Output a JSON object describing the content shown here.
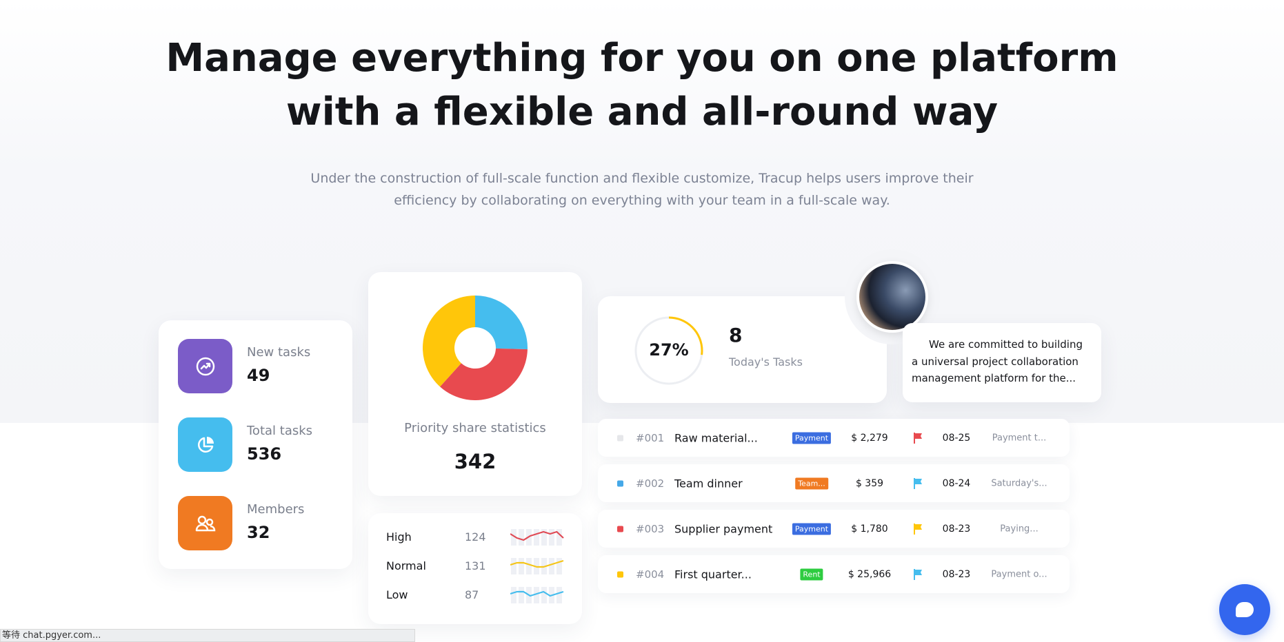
{
  "hero": {
    "title_line1": "Manage everything for you on one platform",
    "title_line2": "with a flexible and all-round way",
    "subtitle_line1": "Under the construction of full-scale function and flexible customize, Tracup helps users improve their",
    "subtitle_line2": "efficiency by collaborating on everything with your team in a full-scale way."
  },
  "stats": [
    {
      "label": "New tasks",
      "value": "49",
      "icon": "trend-icon",
      "color": "#7b5cc8"
    },
    {
      "label": "Total tasks",
      "value": "536",
      "icon": "pie-icon",
      "color": "#45bdee"
    },
    {
      "label": "Members",
      "value": "32",
      "icon": "members-icon",
      "color": "#f07a22"
    }
  ],
  "priority": {
    "title": "Priority share statistics",
    "total": "342",
    "slices": [
      {
        "value": 124,
        "color": "#e84a4f"
      },
      {
        "value": 131,
        "color": "#ffc60a"
      },
      {
        "value": 87,
        "color": "#45bdee"
      }
    ],
    "rows": [
      {
        "label": "High",
        "value": "124",
        "color": "#e04a55",
        "trend": [
          5,
          3,
          2,
          4,
          5,
          6,
          5,
          6,
          3
        ]
      },
      {
        "label": "Normal",
        "value": "131",
        "color": "#f5c518",
        "trend": [
          4,
          5,
          5,
          4,
          3,
          3,
          4,
          5,
          6
        ]
      },
      {
        "label": "Low",
        "value": "87",
        "color": "#45bdee",
        "trend": [
          4,
          5,
          5,
          3,
          4,
          5,
          3,
          4,
          5
        ]
      }
    ]
  },
  "today": {
    "percent_label": "27%",
    "percent": 27,
    "count": "8",
    "label": "Today's Tasks"
  },
  "quote": {
    "line1": "We are committed to building",
    "line2": "a universal project collaboration",
    "line3": "management platform for the..."
  },
  "tasks": [
    {
      "id": "#001",
      "name": "Raw material...",
      "tag": "Payment",
      "tag_color": "#3b6de0",
      "amount": "$ 2,279",
      "flag_color": "#e84a4f",
      "date": "08-25",
      "desc": "Payment t...",
      "dot": "#e6e7ea"
    },
    {
      "id": "#002",
      "name": "Team dinner",
      "tag": "Team...",
      "tag_color": "#f07a22",
      "amount": "$ 359",
      "flag_color": "#45bdee",
      "date": "08-24",
      "desc": "Saturday's...",
      "dot": "#45a8e8"
    },
    {
      "id": "#003",
      "name": "Supplier payment",
      "tag": "Payment",
      "tag_color": "#3b6de0",
      "amount": "$ 1,780",
      "flag_color": "#ffc60a",
      "date": "08-23",
      "desc": "Paying...",
      "dot": "#e84a4f"
    },
    {
      "id": "#004",
      "name": "First quarter...",
      "tag": "Rent",
      "tag_color": "#2ecc40",
      "amount": "$ 25,966",
      "flag_color": "#45bdee",
      "date": "08-23",
      "desc": "Payment o...",
      "dot": "#ffc60a"
    }
  ],
  "status_bar": {
    "text": "等待 chat.pgyer.com..."
  },
  "chat": {
    "color": "#3366ee"
  }
}
